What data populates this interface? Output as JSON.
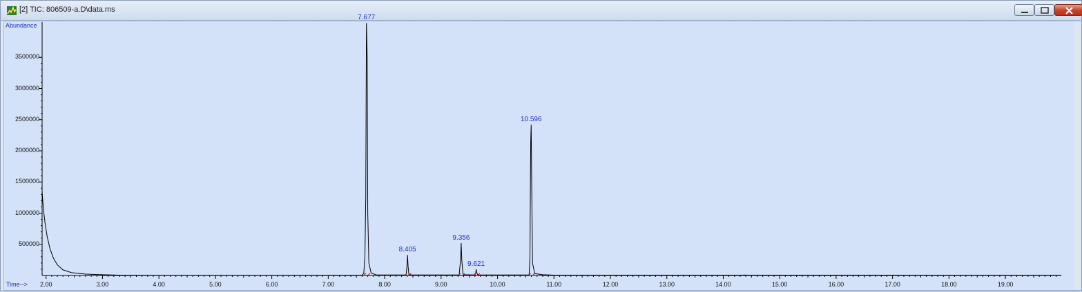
{
  "window": {
    "title": "[2] TIC: 806509-a.D\\data.ms",
    "icon": "chromatogram-app-icon",
    "buttons": [
      "minimize",
      "maximize",
      "close"
    ]
  },
  "colors": {
    "plot_background": "#d3e1f9",
    "trace": "#000000",
    "labels": "#1f2fbf",
    "integration_marks": "#d62020"
  },
  "chart_data": {
    "type": "line",
    "ylabel": "Abundance",
    "xlabel": "Time-->",
    "xlim": [
      1.93,
      19.99
    ],
    "ylim": [
      0,
      4000000
    ],
    "x_ticks": [
      "2.00",
      "3.00",
      "4.00",
      "5.00",
      "6.00",
      "7.00",
      "8.00",
      "9.00",
      "10.00",
      "11.00",
      "12.00",
      "13.00",
      "14.00",
      "15.00",
      "16.00",
      "17.00",
      "18.00",
      "19.00"
    ],
    "y_ticks": [
      "500000",
      "1000000",
      "1500000",
      "2000000",
      "2500000",
      "3000000",
      "3500000"
    ],
    "grid": false,
    "series": [
      {
        "points": [
          [
            1.93,
            1350000
          ],
          [
            1.95,
            1100000
          ],
          [
            1.98,
            850000
          ],
          [
            2.02,
            620000
          ],
          [
            2.07,
            430000
          ],
          [
            2.13,
            280000
          ],
          [
            2.2,
            170000
          ],
          [
            2.3,
            90000
          ],
          [
            2.45,
            45000
          ],
          [
            2.7,
            22000
          ],
          [
            3.0,
            12000
          ],
          [
            3.3,
            5000
          ],
          [
            4.0,
            3000
          ],
          [
            6.0,
            3000
          ],
          [
            7.5,
            4000
          ],
          [
            7.6,
            6000
          ],
          [
            7.63,
            30000
          ],
          [
            7.65,
            300000
          ],
          [
            7.665,
            1250000
          ],
          [
            7.677,
            4050000
          ],
          [
            7.69,
            3500000
          ],
          [
            7.7,
            1000000
          ],
          [
            7.72,
            200000
          ],
          [
            7.76,
            40000
          ],
          [
            7.85,
            10000
          ],
          [
            8.38,
            8000
          ],
          [
            8.395,
            150000
          ],
          [
            8.405,
            330000
          ],
          [
            8.415,
            150000
          ],
          [
            8.43,
            10000
          ],
          [
            9.32,
            8000
          ],
          [
            9.345,
            250000
          ],
          [
            9.356,
            520000
          ],
          [
            9.367,
            240000
          ],
          [
            9.39,
            12000
          ],
          [
            9.6,
            8000
          ],
          [
            9.615,
            50000
          ],
          [
            9.621,
            100000
          ],
          [
            9.63,
            50000
          ],
          [
            9.65,
            8000
          ],
          [
            10.56,
            8000
          ],
          [
            10.575,
            300000
          ],
          [
            10.588,
            2150000
          ],
          [
            10.596,
            2420000
          ],
          [
            10.605,
            1500000
          ],
          [
            10.62,
            200000
          ],
          [
            10.66,
            30000
          ],
          [
            10.8,
            12000
          ],
          [
            11.0,
            6000
          ],
          [
            14.35,
            5000
          ],
          [
            14.37,
            9000
          ],
          [
            14.4,
            5000
          ],
          [
            19.99,
            4000
          ]
        ]
      }
    ],
    "peaks": [
      {
        "rt": 7.677,
        "label": "7.677",
        "height": 4050000
      },
      {
        "rt": 8.405,
        "label": "8.405",
        "height": 330000
      },
      {
        "rt": 9.356,
        "label": "9.356",
        "height": 520000
      },
      {
        "rt": 9.621,
        "label": "9.621",
        "height": 100000
      },
      {
        "rt": 10.596,
        "label": "10.596",
        "height": 2420000
      }
    ]
  }
}
